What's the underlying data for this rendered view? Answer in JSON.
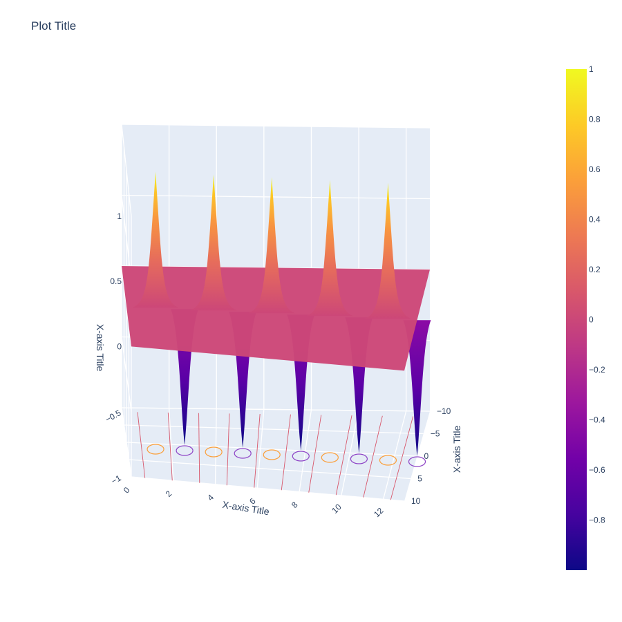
{
  "chart_data": {
    "type": "surface",
    "title": "Plot Title",
    "x_axis": {
      "title": "X-axis Title",
      "range": [
        0,
        13
      ],
      "ticks": [
        0,
        2,
        4,
        6,
        8,
        10,
        12
      ],
      "tick_labels": [
        "0",
        "2",
        "4",
        "6",
        "8",
        "10",
        "12"
      ]
    },
    "y_axis": {
      "title": "X-axis Title",
      "range": [
        -10,
        10
      ],
      "ticks": [
        -10,
        -5,
        0,
        5,
        10
      ],
      "tick_labels": [
        "−10",
        "−5",
        "0",
        "5",
        "10"
      ]
    },
    "z_axis": {
      "title": "X-axis Title",
      "range": [
        -1,
        1
      ],
      "ticks": [
        -1,
        -0.5,
        0,
        0.5,
        1
      ],
      "tick_labels": [
        "−1",
        "−0.5",
        "0",
        "0.5",
        "1"
      ]
    },
    "peaks": [
      {
        "x": 1.3,
        "y": 0,
        "z": 1
      },
      {
        "x": 3.9,
        "y": 0,
        "z": 1
      },
      {
        "x": 6.5,
        "y": 0,
        "z": 1
      },
      {
        "x": 9.1,
        "y": 0,
        "z": 1
      },
      {
        "x": 11.7,
        "y": 0,
        "z": 1
      }
    ],
    "troughs": [
      {
        "x": 2.6,
        "y": 0,
        "z": -1
      },
      {
        "x": 5.2,
        "y": 0,
        "z": -1
      },
      {
        "x": 7.8,
        "y": 0,
        "z": -1
      },
      {
        "x": 10.4,
        "y": 0,
        "z": -1
      },
      {
        "x": 13,
        "y": 0,
        "z": -1
      }
    ],
    "colorscale": "plasma",
    "colorbar": {
      "range": [
        -1,
        1
      ],
      "ticks": [
        1,
        0.8,
        0.6,
        0.4,
        0.2,
        0,
        -0.2,
        -0.4,
        -0.6,
        -0.8
      ],
      "tick_labels": [
        "1",
        "0.8",
        "0.6",
        "0.4",
        "0.2",
        "0",
        "−0.2",
        "−0.4",
        "−0.6",
        "−0.8"
      ]
    },
    "contours_projected": true,
    "grid": true,
    "colors": {
      "low": "#0d0887",
      "mid": "#cc4778",
      "high": "#f0f921",
      "background": "#e5ecf6",
      "gridline": "#ffffff"
    }
  }
}
